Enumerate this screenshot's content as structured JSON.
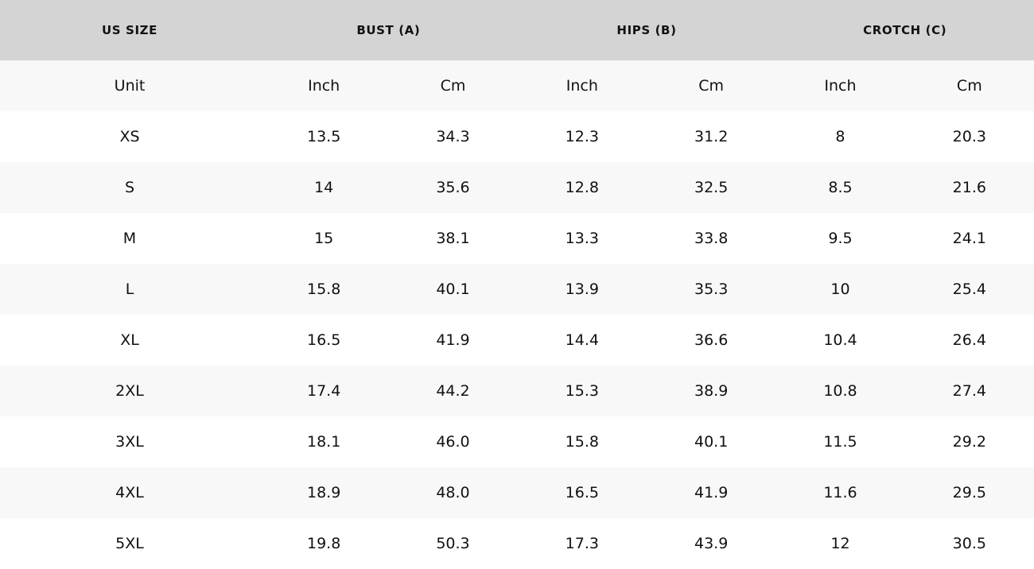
{
  "table": {
    "headers": [
      "US SIZE",
      "BUST (A)",
      "HIPS (B)",
      "CROTCH (C)"
    ],
    "units": [
      "Unit",
      "Inch",
      "Cm",
      "Inch",
      "Cm",
      "Inch",
      "Cm"
    ],
    "rows": [
      [
        "XS",
        "13.5",
        "34.3",
        "12.3",
        "31.2",
        "8",
        "20.3"
      ],
      [
        "S",
        "14",
        "35.6",
        "12.8",
        "32.5",
        "8.5",
        "21.6"
      ],
      [
        "M",
        "15",
        "38.1",
        "13.3",
        "33.8",
        "9.5",
        "24.1"
      ],
      [
        "L",
        "15.8",
        "40.1",
        "13.9",
        "35.3",
        "10",
        "25.4"
      ],
      [
        "XL",
        "16.5",
        "41.9",
        "14.4",
        "36.6",
        "10.4",
        "26.4"
      ],
      [
        "2XL",
        "17.4",
        "44.2",
        "15.3",
        "38.9",
        "10.8",
        "27.4"
      ],
      [
        "3XL",
        "18.1",
        "46.0",
        "15.8",
        "40.1",
        "11.5",
        "29.2"
      ],
      [
        "4XL",
        "18.9",
        "48.0",
        "16.5",
        "41.9",
        "11.6",
        "29.5"
      ],
      [
        "5XL",
        "19.8",
        "50.3",
        "17.3",
        "43.9",
        "12",
        "30.5"
      ]
    ]
  }
}
